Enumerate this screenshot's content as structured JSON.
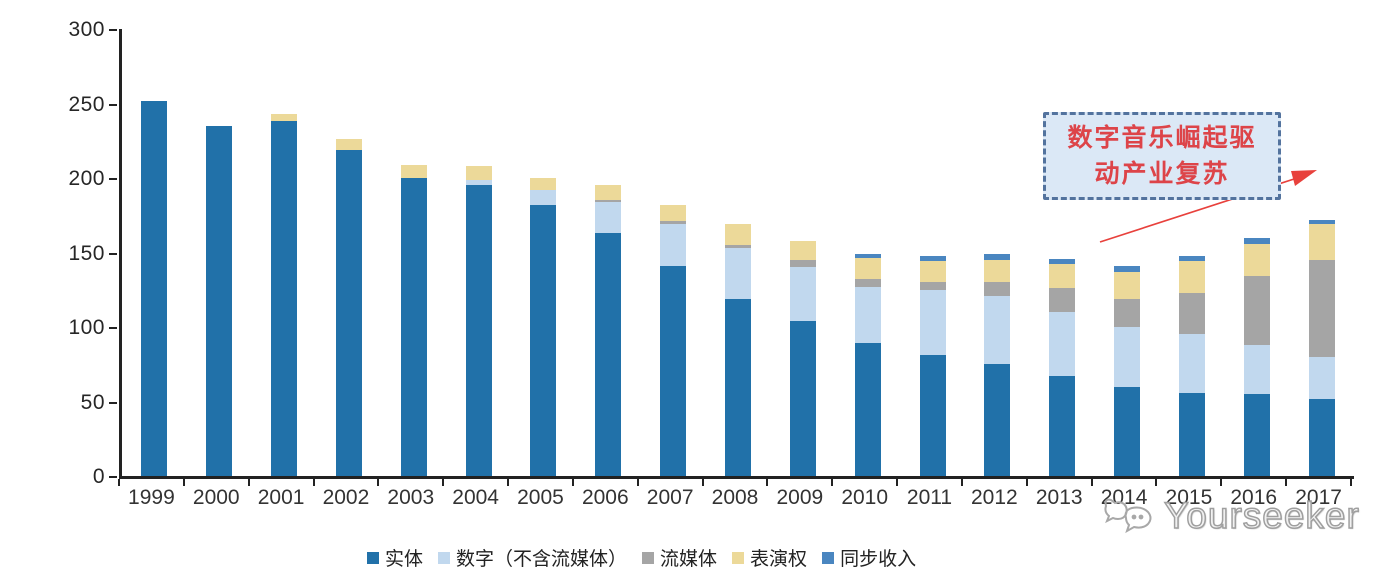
{
  "chart_data": {
    "type": "bar",
    "variant": "stacked",
    "title": "",
    "xlabel": "",
    "ylabel": "",
    "ylim": [
      0,
      300
    ],
    "yticks": [
      0,
      50,
      100,
      150,
      200,
      250,
      300
    ],
    "grid": false,
    "legend_position": "bottom",
    "categories": [
      "1999",
      "2000",
      "2001",
      "2002",
      "2003",
      "2004",
      "2005",
      "2006",
      "2007",
      "2008",
      "2009",
      "2010",
      "2011",
      "2012",
      "2013",
      "2014",
      "2015",
      "2016",
      "2017"
    ],
    "series": [
      {
        "name": "实体",
        "color": "#2171a9",
        "values": [
          252,
          235,
          238,
          219,
          200,
          195,
          182,
          163,
          141,
          119,
          104,
          89,
          81,
          75,
          67,
          60,
          56,
          55,
          52
        ]
      },
      {
        "name": "数字（不含流媒体）",
        "color": "#c1d8ee",
        "values": [
          0,
          0,
          0,
          0,
          0,
          4,
          10,
          21,
          28,
          34,
          36,
          38,
          44,
          46,
          43,
          40,
          39,
          33,
          28
        ]
      },
      {
        "name": "流媒体",
        "color": "#a5a5a5",
        "values": [
          0,
          0,
          0,
          0,
          0,
          0,
          0,
          1,
          2,
          2,
          5,
          5,
          5,
          9,
          16,
          19,
          28,
          46,
          65
        ]
      },
      {
        "name": "表演权",
        "color": "#ecd999",
        "values": [
          0,
          0,
          5,
          7,
          9,
          9,
          8,
          10,
          11,
          14,
          13,
          14,
          14,
          15,
          16,
          18,
          21,
          22,
          24
        ]
      },
      {
        "name": "同步收入",
        "color": "#4a86c0",
        "values": [
          0,
          0,
          0,
          0,
          0,
          0,
          0,
          0,
          0,
          0,
          0,
          3,
          4,
          4,
          4,
          4,
          4,
          4,
          3
        ]
      }
    ],
    "totals": [
      252,
      235,
      243,
      226,
      209,
      208,
      200,
      195,
      182,
      169,
      158,
      149,
      148,
      149,
      146,
      141,
      148,
      160,
      172
    ],
    "annotation": {
      "line1": "数字音乐崛起驱",
      "line2": "动产业复苏",
      "text_color": "#dd4449",
      "box_fill": "#dbe8f6",
      "box_border": "#53739e",
      "arrow_color": "#e8413c"
    },
    "axis_color": "#222222"
  },
  "watermark": {
    "text": "Yourseeker"
  }
}
